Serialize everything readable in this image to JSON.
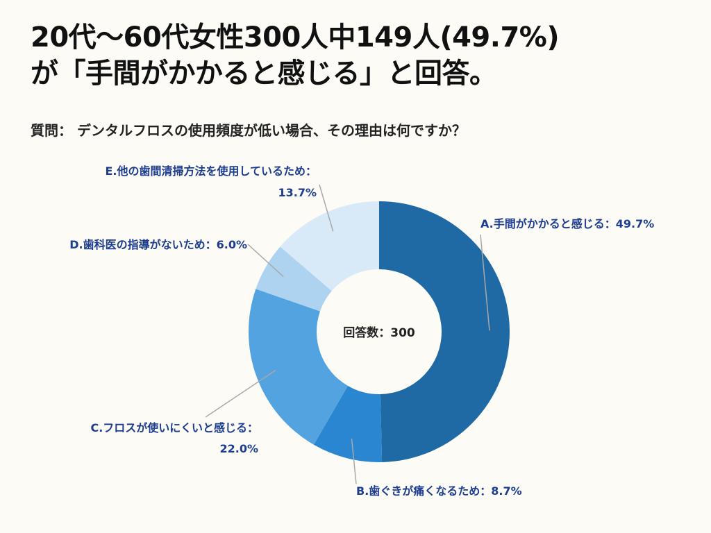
{
  "title": {
    "line1": "20代〜60代女性300人中149人(49.7%)",
    "line2": "が「手間がかかると感じる」と回答。"
  },
  "question": "質問： デンタルフロスの使用頻度が低い場合、その理由は何ですか？",
  "chart_data": {
    "type": "pie",
    "donut": true,
    "center_label": "回答数：300",
    "total": 300,
    "slices": [
      {
        "label": "A.手間がかかると感じる：49.7%",
        "value": 49.7,
        "color": "#1f6aa5"
      },
      {
        "label": "B.歯ぐきが痛くなるため：8.7%",
        "value": 8.7,
        "color": "#2a86d1"
      },
      {
        "label": "C.フロスが使いにくいと感じる：",
        "value_label": "22.0%",
        "value": 22.0,
        "color": "#52a3df"
      },
      {
        "label": "D.歯科医の指導がないため：6.0%",
        "value": 6.0,
        "color": "#aed3f0"
      },
      {
        "label": "E.他の歯間清掃方法を使用しているため：",
        "value_label": "13.7%",
        "value": 13.7,
        "color": "#d8e9f8"
      }
    ]
  }
}
